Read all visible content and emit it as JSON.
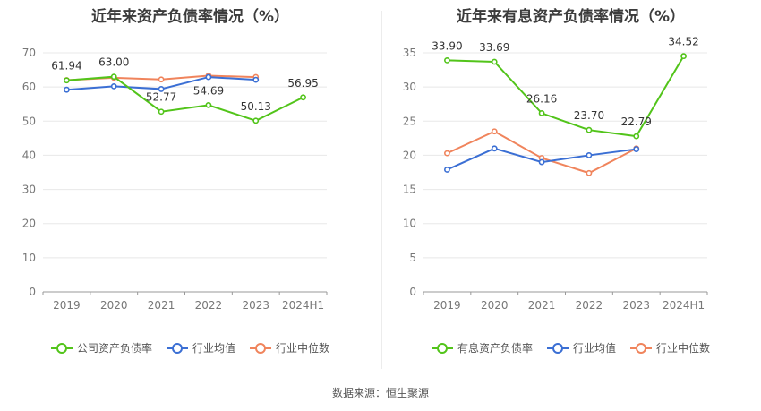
{
  "source_label": "数据来源：恒生聚源",
  "colors": {
    "company": "#52c41a",
    "industry_avg": "#3b6fd4",
    "industry_median": "#f0845c"
  },
  "chart_data": [
    {
      "type": "line",
      "title": "近年来资产负债率情况（%）",
      "categories": [
        "2019",
        "2020",
        "2021",
        "2022",
        "2023",
        "2024H1"
      ],
      "ylim": [
        0,
        70
      ],
      "yticks": [
        0,
        10,
        20,
        30,
        40,
        50,
        60,
        70
      ],
      "grid": true,
      "legend_position": "bottom",
      "series": [
        {
          "name": "公司资产负债率",
          "color": "#52c41a",
          "values": [
            61.94,
            63.0,
            52.77,
            54.69,
            50.13,
            56.95
          ],
          "labels": true
        },
        {
          "name": "行业均值",
          "color": "#3b6fd4",
          "values": [
            59.2,
            60.2,
            59.4,
            62.9,
            62.1,
            null
          ],
          "labels": false
        },
        {
          "name": "行业中位数",
          "color": "#f0845c",
          "values": [
            62.0,
            62.7,
            62.2,
            63.3,
            62.9,
            null
          ],
          "labels": false
        }
      ]
    },
    {
      "type": "line",
      "title": "近年来有息资产负债率情况（%）",
      "categories": [
        "2019",
        "2020",
        "2021",
        "2022",
        "2023",
        "2024H1"
      ],
      "ylim": [
        0,
        35
      ],
      "yticks": [
        0,
        5,
        10,
        15,
        20,
        25,
        30,
        35
      ],
      "grid": true,
      "legend_position": "bottom",
      "series": [
        {
          "name": "有息资产负债率",
          "color": "#52c41a",
          "values": [
            33.9,
            33.69,
            26.16,
            23.7,
            22.79,
            34.52
          ],
          "labels": true
        },
        {
          "name": "行业均值",
          "color": "#3b6fd4",
          "values": [
            17.9,
            21.0,
            19.0,
            20.0,
            20.9,
            null
          ],
          "labels": false
        },
        {
          "name": "行业中位数",
          "color": "#f0845c",
          "values": [
            20.3,
            23.5,
            19.6,
            17.4,
            21.0,
            null
          ],
          "labels": false
        }
      ]
    }
  ]
}
